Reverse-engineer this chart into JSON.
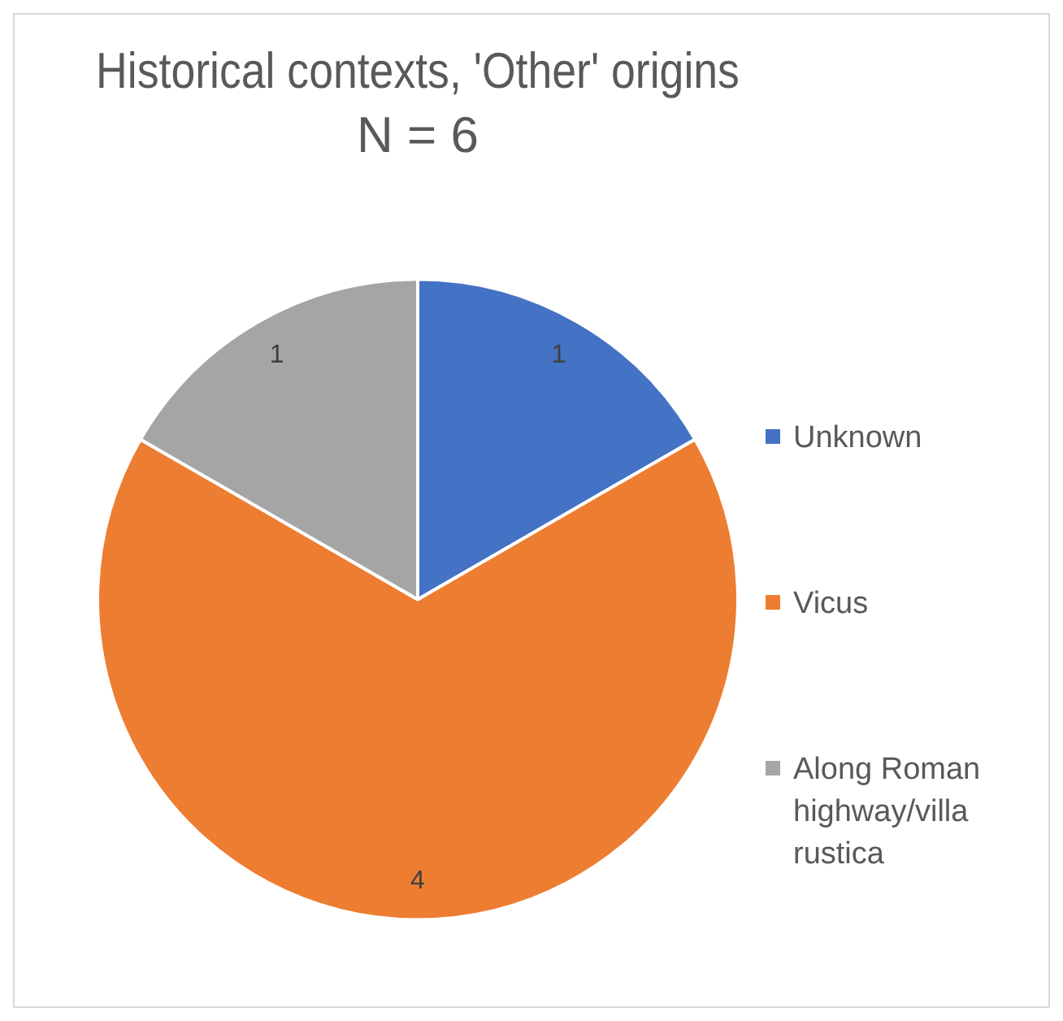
{
  "chart_data": {
    "type": "pie",
    "title": "Historical contexts, 'Other' origins",
    "subtitle": "N = 6",
    "categories": [
      "Unknown",
      "Vicus",
      "Along Roman highway/villa rustica"
    ],
    "values": [
      1,
      4,
      1
    ],
    "colors": [
      "#4472c4",
      "#ed7d31",
      "#a5a5a5"
    ],
    "data_labels": true,
    "legend": "right"
  }
}
